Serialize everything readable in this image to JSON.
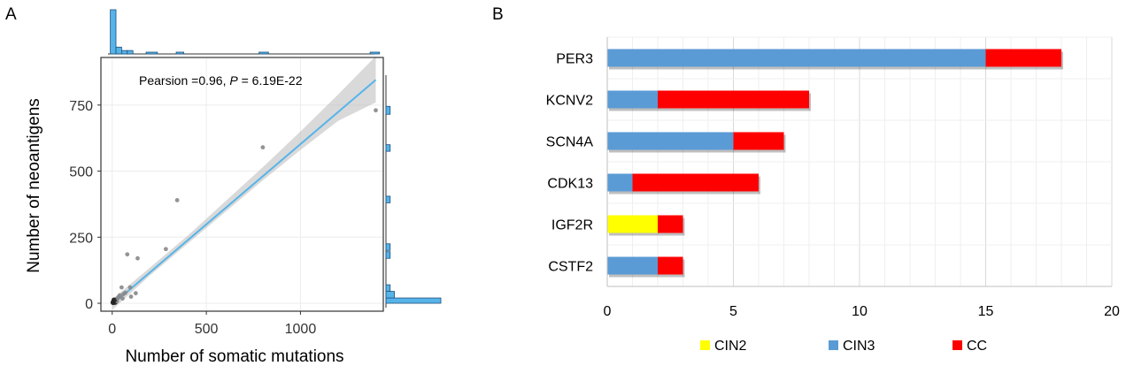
{
  "panel_labels": {
    "a": "A",
    "b": "B"
  },
  "chart_data": [
    {
      "type": "scatter",
      "panel": "A",
      "xlabel": "Number of somatic mutations",
      "ylabel": "Number of neoantigens",
      "xlim": [
        -60,
        1440
      ],
      "ylim": [
        -30,
        930
      ],
      "xticks": [
        0,
        500,
        1000
      ],
      "yticks": [
        0,
        250,
        500,
        750
      ],
      "grid": true,
      "annotation": {
        "prefix": "Pearsion =0.96, ",
        "p_symbol": "P",
        "p_value": " = 6.19E-22"
      },
      "points": [
        {
          "x": 5,
          "y": 3
        },
        {
          "x": 8,
          "y": 6
        },
        {
          "x": 12,
          "y": 10
        },
        {
          "x": 15,
          "y": 4
        },
        {
          "x": 20,
          "y": 15
        },
        {
          "x": 25,
          "y": 8
        },
        {
          "x": 10,
          "y": 12
        },
        {
          "x": 30,
          "y": 20
        },
        {
          "x": 35,
          "y": 25
        },
        {
          "x": 40,
          "y": 30
        },
        {
          "x": 50,
          "y": 60
        },
        {
          "x": 55,
          "y": 18
        },
        {
          "x": 60,
          "y": 35
        },
        {
          "x": 70,
          "y": 40
        },
        {
          "x": 80,
          "y": 185
        },
        {
          "x": 95,
          "y": 60
        },
        {
          "x": 100,
          "y": 25
        },
        {
          "x": 125,
          "y": 38
        },
        {
          "x": 135,
          "y": 170
        },
        {
          "x": 285,
          "y": 205
        },
        {
          "x": 345,
          "y": 390
        },
        {
          "x": 800,
          "y": 590
        },
        {
          "x": 1400,
          "y": 730
        }
      ],
      "fit_line": {
        "x": [
          0,
          1400
        ],
        "y": [
          -5,
          845
        ]
      },
      "confidence_band": {
        "x": [
          0,
          200,
          400,
          600,
          800,
          1000,
          1200,
          1400
        ],
        "upper": [
          15,
          135,
          255,
          385,
          515,
          650,
          790,
          935
        ],
        "lower": [
          -25,
          105,
          225,
          345,
          465,
          580,
          690,
          760
        ]
      },
      "x_histogram": {
        "bins": [
          [
            -10,
            20
          ],
          [
            20,
            50
          ],
          [
            50,
            80
          ],
          [
            80,
            110
          ],
          [
            180,
            240
          ],
          [
            340,
            380
          ],
          [
            780,
            830
          ],
          [
            1370,
            1420
          ]
        ],
        "counts": [
          13,
          2,
          1,
          1,
          0.3,
          0.3,
          0.3,
          0.3
        ]
      },
      "y_histogram": {
        "bins": [
          [
            0,
            20
          ],
          [
            20,
            45
          ],
          [
            45,
            70
          ],
          [
            170,
            195
          ],
          [
            200,
            225
          ],
          [
            380,
            405
          ],
          [
            575,
            600
          ],
          [
            715,
            745
          ]
        ],
        "counts": [
          13,
          2,
          1,
          1,
          1,
          1,
          1,
          1
        ]
      }
    },
    {
      "type": "bar",
      "panel": "B",
      "orientation": "horizontal",
      "stacked": true,
      "categories": [
        "PER3",
        "KCNV2",
        "SCN4A",
        "CDK13",
        "IGF2R",
        "CSTF2"
      ],
      "series": [
        {
          "name": "CIN2",
          "color": "#ffff00",
          "values": [
            0,
            0,
            0,
            0,
            2,
            0
          ]
        },
        {
          "name": "CIN3",
          "color": "#5b9bd5",
          "values": [
            15,
            2,
            5,
            1,
            0,
            2
          ]
        },
        {
          "name": "CC",
          "color": "#ff0000",
          "values": [
            3,
            6,
            2,
            5,
            1,
            1
          ]
        }
      ],
      "xlim": [
        0,
        20
      ],
      "xticks": [
        0,
        5,
        10,
        15,
        20
      ],
      "grid": true,
      "legend_position": "bottom"
    }
  ]
}
